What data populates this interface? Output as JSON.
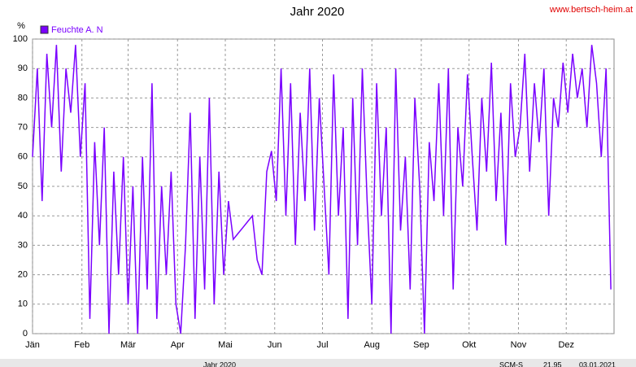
{
  "chart_data": {
    "type": "line",
    "title": "Jahr 2020",
    "y_unit": "%",
    "watermark": "www.bertsch-heim.at",
    "x": [
      1,
      4,
      7,
      10,
      13,
      16,
      19,
      22,
      25,
      28,
      31,
      34,
      37,
      40,
      43,
      46,
      49,
      52,
      55,
      58,
      61,
      64,
      67,
      70,
      73,
      76,
      79,
      82,
      85,
      88,
      91,
      94,
      97,
      100,
      103,
      106,
      109,
      112,
      115,
      118,
      121,
      124,
      127,
      130,
      133,
      136,
      139,
      142,
      145,
      148,
      151,
      154,
      157,
      160,
      163,
      166,
      169,
      172,
      175,
      178,
      181,
      184,
      187,
      190,
      193,
      196,
      199,
      202,
      205,
      208,
      211,
      214,
      217,
      220,
      223,
      226,
      229,
      232,
      235,
      238,
      241,
      244,
      247,
      250,
      253,
      256,
      259,
      262,
      265,
      268,
      271,
      274,
      277,
      280,
      283,
      286,
      289,
      292,
      295,
      298,
      301,
      304,
      307,
      310,
      313,
      316,
      319,
      322,
      325,
      328,
      331,
      334,
      337,
      340,
      343,
      346,
      349,
      352,
      355,
      358,
      361,
      364
    ],
    "series": [
      {
        "name": "Feuchte A. N",
        "color": "#7a00ff",
        "values": [
          60,
          90,
          45,
          95,
          70,
          98,
          55,
          90,
          75,
          98,
          60,
          85,
          5,
          65,
          30,
          70,
          0,
          55,
          20,
          60,
          10,
          50,
          0,
          60,
          15,
          85,
          5,
          50,
          20,
          55,
          10,
          0,
          30,
          75,
          5,
          60,
          15,
          80,
          10,
          55,
          20,
          45,
          32,
          34,
          36,
          38,
          40,
          25,
          20,
          55,
          62,
          45,
          90,
          40,
          85,
          30,
          75,
          45,
          90,
          35,
          80,
          50,
          20,
          88,
          40,
          70,
          5,
          80,
          30,
          90,
          45,
          10,
          85,
          40,
          70,
          0,
          90,
          35,
          60,
          15,
          80,
          50,
          0,
          65,
          45,
          85,
          40,
          90,
          15,
          70,
          50,
          88,
          60,
          35,
          80,
          55,
          92,
          45,
          75,
          30,
          85,
          60,
          70,
          95,
          55,
          85,
          65,
          90,
          40,
          80,
          70,
          92,
          75,
          95,
          80,
          90,
          70,
          98,
          85,
          60,
          90,
          15
        ]
      }
    ],
    "xlim": [
      1,
      366
    ],
    "xticks": [
      {
        "value": 1,
        "label": "Jän"
      },
      {
        "value": 32,
        "label": "Feb"
      },
      {
        "value": 61,
        "label": "Mär"
      },
      {
        "value": 92,
        "label": "Apr"
      },
      {
        "value": 122,
        "label": "Mai"
      },
      {
        "value": 153,
        "label": "Jun"
      },
      {
        "value": 183,
        "label": "Jul"
      },
      {
        "value": 214,
        "label": "Aug"
      },
      {
        "value": 245,
        "label": "Sep"
      },
      {
        "value": 275,
        "label": "Okt"
      },
      {
        "value": 306,
        "label": "Nov"
      },
      {
        "value": 336,
        "label": "Dez"
      }
    ],
    "ylim": [
      0,
      100
    ],
    "yticks": [
      0,
      10,
      20,
      30,
      40,
      50,
      60,
      70,
      80,
      90,
      100
    ],
    "grid": true
  },
  "status_bar": [
    "Jahr 2020",
    "SCM-S",
    "21,95",
    "03.01.2021"
  ]
}
